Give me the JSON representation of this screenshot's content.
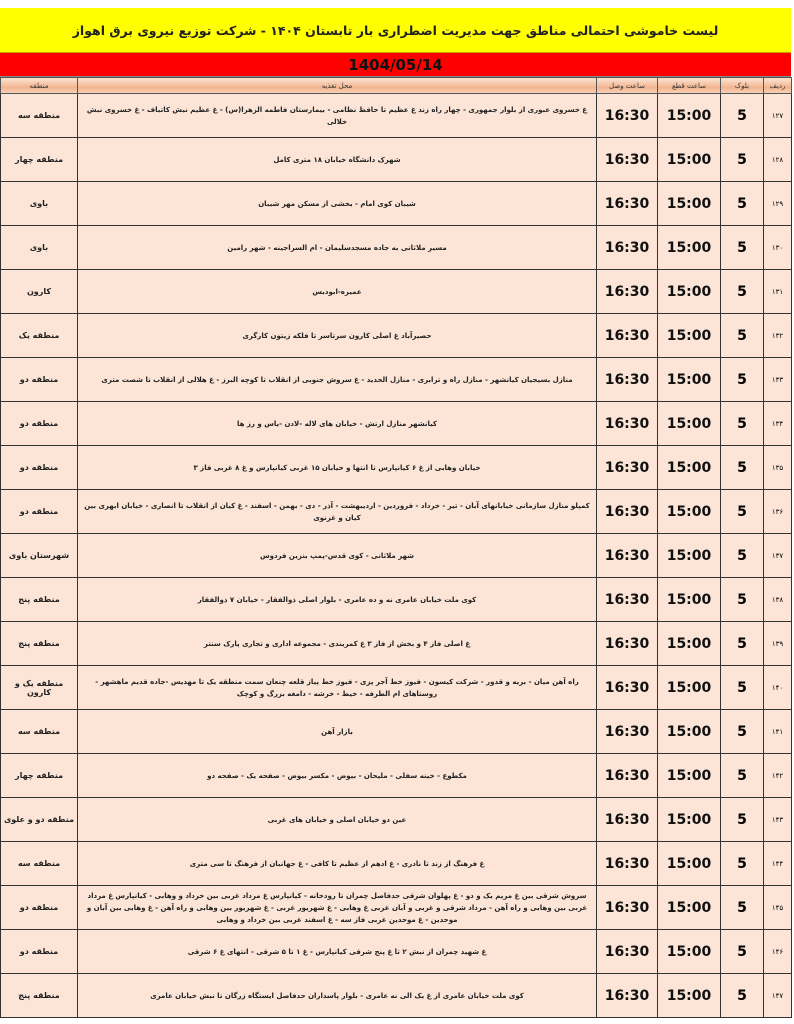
{
  "title": "لیست خاموشی احتمالی مناطق جهت مدیریت اضطراری بار تابستان ۱۴۰۴ - شرکت توزیع نیروی برق اهواز",
  "date": "1404/05/14",
  "colors": {
    "title_bg": "#ffff00",
    "date_bg": "#ff0000",
    "row_bg": "#fce4d6"
  },
  "columns": {
    "row": "ردیف",
    "block": "بلوک",
    "cut": "ساعت قطع",
    "connect": "ساعت وصل",
    "location": "محل تغذیه",
    "region": "منطقه"
  },
  "rows": [
    {
      "row": "۱۲۷",
      "block": "5",
      "cut": "15:00",
      "connect": "16:30",
      "location": "غ خسروی عبوری از بلوار جمهوری - چهار راه زند غ عظیم تا حافظ نظامی - بیمارستان فاطمه الزهرا(س) - غ عظیم نبش کاتباف - غ خسروی نبش خلالی",
      "region": "منطقه سه"
    },
    {
      "row": "۱۲۸",
      "block": "5",
      "cut": "15:00",
      "connect": "16:30",
      "location": "شهرک دانشگاه خیابان ۱۸ متری کامل",
      "region": "منطقه چهار"
    },
    {
      "row": "۱۲۹",
      "block": "5",
      "cut": "15:00",
      "connect": "16:30",
      "location": "شیبان کوی امام - بخشی از مسکن مهر شیبان",
      "region": "باوی"
    },
    {
      "row": "۱۳۰",
      "block": "5",
      "cut": "15:00",
      "connect": "16:30",
      "location": "مسیر ملاثانی به جاده مسجدسلیمان - ام السراجینه - شهر رامین",
      "region": "باوی"
    },
    {
      "row": "۱۳۱",
      "block": "5",
      "cut": "15:00",
      "connect": "16:30",
      "location": "عمیره-ابودبس",
      "region": "کارون"
    },
    {
      "row": "۱۳۲",
      "block": "5",
      "cut": "15:00",
      "connect": "16:30",
      "location": "حصیرآباد غ اصلی کارون سرتاسر تا فلکه زیتون کارگری",
      "region": "منطقه یک"
    },
    {
      "row": "۱۳۳",
      "block": "5",
      "cut": "15:00",
      "connect": "16:30",
      "location": "منازل بسیجیان کیانشهر - منازل راه و ترابری - منازل الحدید - غ سروش جنوبی از انقلاب تا کوچه البرز - غ هلالی از انقلاب تا شصت متری",
      "region": "منطقه دو"
    },
    {
      "row": "۱۳۴",
      "block": "5",
      "cut": "15:00",
      "connect": "16:30",
      "location": "کیانشهر منازل ارتش - خیابان های لاله -لادن -یاس و رز ها",
      "region": "منطقه دو"
    },
    {
      "row": "۱۳۵",
      "block": "5",
      "cut": "15:00",
      "connect": "16:30",
      "location": "خیابان وهابی از غ ۶ کیانپارس تا انتها و خیابان ۱۵ غربی کیانپارس و غ ۸ غربی فاز ۳",
      "region": "منطقه دو"
    },
    {
      "row": "۱۳۶",
      "block": "5",
      "cut": "15:00",
      "connect": "16:30",
      "location": "کمپلو منازل سازمانی خیابانهای آبان - تیر - خرداد - فروردین - اردیبهشت - آذر - دی - بهمن - اسفند - غ کیان از انقلاب تا انصاری - خیابان ابهری بین کیان و غزنوی",
      "region": "منطقه دو"
    },
    {
      "row": "۱۳۷",
      "block": "5",
      "cut": "15:00",
      "connect": "16:30",
      "location": "شهر ملاثانی - کوی قدس-پمپ بنزین فردوس",
      "region": "شهرستان باوی"
    },
    {
      "row": "۱۳۸",
      "block": "5",
      "cut": "15:00",
      "connect": "16:30",
      "location": "کوی ملت خیابان عامری نه و ده عامری - بلوار اصلی ذوالفقار - خیابان ۷ ذوالفقار",
      "region": "منطقه پنج"
    },
    {
      "row": "۱۳۹",
      "block": "5",
      "cut": "15:00",
      "connect": "16:30",
      "location": "غ اصلی فاز ۴ و بخش از فاز ۳ غ کمربندی - مجموعه اداری و تجاری پارک سنتر",
      "region": "منطقه پنج"
    },
    {
      "row": "۱۴۰",
      "block": "5",
      "cut": "15:00",
      "connect": "16:30",
      "location": "راه آهن میان - بریه و قدور - شرکت کیسون - فیوز خط آجر پزی - فیوز خط پیاز قلعه چنعان سمت منطقه یک تا مهدیس -جاده قدیم ماهشهر - روستاهای ام الطرفه - خیط - خرشه - دامغه بزرگ و کوچک",
      "region": "منطقه یک و کارون"
    },
    {
      "row": "۱۴۱",
      "block": "5",
      "cut": "15:00",
      "connect": "16:30",
      "location": "بازار آهن",
      "region": "منطقه سه"
    },
    {
      "row": "۱۴۲",
      "block": "5",
      "cut": "15:00",
      "connect": "16:30",
      "location": "مکطوع - خینه سفلی - ملیحان - بیوض - مکسر بیوض - صفحه یک - صفحه دو",
      "region": "منطقه چهار"
    },
    {
      "row": "۱۴۳",
      "block": "5",
      "cut": "15:00",
      "connect": "16:30",
      "location": "عین دو خیابان اصلی و خیابان های غربی",
      "region": "منطقه دو و علوی"
    },
    {
      "row": "۱۴۴",
      "block": "5",
      "cut": "15:00",
      "connect": "16:30",
      "location": "غ فرهنگ از زند تا نادری - غ ادهم از عظیم تا کافی - غ جهانبان از فرهنگ تا سی متری",
      "region": "منطقه سه"
    },
    {
      "row": "۱۴۵",
      "block": "5",
      "cut": "15:00",
      "connect": "16:30",
      "location": "سروش شرقی بین غ مریم یک و دو - غ پهلوان شرقی حدفاصل چمران تا رودخانه - کیانپارس غ مرداد غربی بین خرداد و وهابی - کیانپارس غ مرداد غربی بین وهابی و راه آهن - مرداد شرقی و غربی و آبان غربی غ وهابی - غ شهریور غربی - غ شهریور بین وهابی و راه آهن - غ وهابی بین آبان و موحدین - غ موحدین غربی فاز سه - غ اسفند غربی بین خرداد و وهابی",
      "region": "منطقه دو"
    },
    {
      "row": "۱۴۶",
      "block": "5",
      "cut": "15:00",
      "connect": "16:30",
      "location": "غ شهید چمران از نبش ۲ تا غ پنج شرقی کیانپارس - غ ۱ تا ۵ شرقی - انتهای غ ۶ شرقی",
      "region": "منطقه دو"
    },
    {
      "row": "۱۴۷",
      "block": "5",
      "cut": "15:00",
      "connect": "16:30",
      "location": "کوی ملت خیابان عامری از غ یک الی نه عامری - بلوار پاسداران حدفاصل ایستگاه زرگان تا نبش خیابان عامری",
      "region": "منطقه پنج"
    }
  ]
}
